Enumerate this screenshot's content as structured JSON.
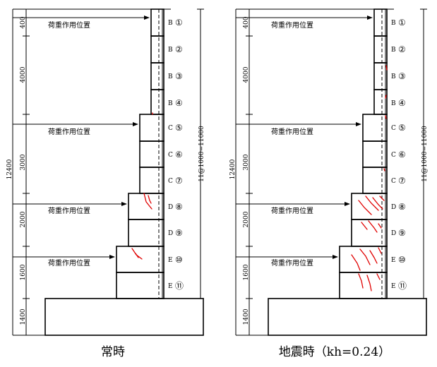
{
  "panels": [
    {
      "caption": "常時",
      "load_label": "荷重作用位置",
      "total_dim": "12400",
      "segment_dims": [
        "400",
        "4000",
        "3000",
        "2000",
        "1600",
        "1400"
      ],
      "pitch_dim": "11@1000=11000",
      "blocks": [
        {
          "type": "B",
          "num": "①"
        },
        {
          "type": "B",
          "num": "②"
        },
        {
          "type": "B",
          "num": "③"
        },
        {
          "type": "B",
          "num": "④"
        },
        {
          "type": "C",
          "num": "⑤"
        },
        {
          "type": "C",
          "num": "⑥"
        },
        {
          "type": "C",
          "num": "⑦"
        },
        {
          "type": "D",
          "num": "⑧"
        },
        {
          "type": "D",
          "num": "⑨"
        },
        {
          "type": "E",
          "num": "⑩"
        },
        {
          "type": "E",
          "num": "⑪"
        }
      ]
    },
    {
      "caption": "地震時（kh=0.24）",
      "load_label": "荷重作用位置",
      "total_dim": "12400",
      "segment_dims": [
        "400",
        "4000",
        "3000",
        "2000",
        "1600",
        "1400"
      ],
      "pitch_dim": "11@1000=11000",
      "blocks": [
        {
          "type": "B",
          "num": "①"
        },
        {
          "type": "B",
          "num": "②"
        },
        {
          "type": "B",
          "num": "③"
        },
        {
          "type": "B",
          "num": "④"
        },
        {
          "type": "C",
          "num": "⑤"
        },
        {
          "type": "C",
          "num": "⑥"
        },
        {
          "type": "C",
          "num": "⑦"
        },
        {
          "type": "D",
          "num": "⑧"
        },
        {
          "type": "D",
          "num": "⑨"
        },
        {
          "type": "E",
          "num": "⑩"
        },
        {
          "type": "E",
          "num": "⑪"
        }
      ]
    }
  ]
}
